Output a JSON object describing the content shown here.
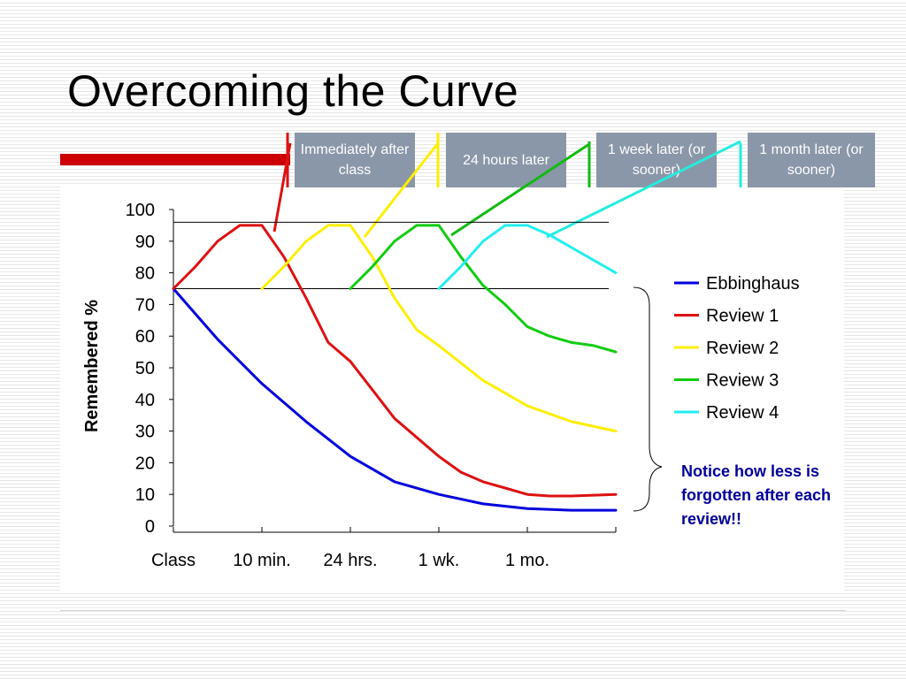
{
  "slide": {
    "title": "Overcoming the Curve",
    "accent_color": "#cc0000",
    "box_color": "#8a97a8"
  },
  "review_boxes": [
    {
      "label": "Immediately after class",
      "color": "#dd1111"
    },
    {
      "label": "24 hours later",
      "color": "#ffee00"
    },
    {
      "label": "1 week later (or sooner)",
      "color": "#11bb11"
    },
    {
      "label": "1 month later (or sooner)",
      "color": "#22eedd"
    }
  ],
  "notice": {
    "text": "Notice how less is forgotten after each review!!",
    "color": "#000099"
  },
  "chart_data": {
    "type": "line",
    "title": "",
    "xlabel": "",
    "ylabel": "Remembered %",
    "ylim": [
      0,
      100
    ],
    "yticks": [
      0,
      10,
      20,
      30,
      40,
      50,
      60,
      70,
      80,
      90,
      100
    ],
    "categories": [
      "Class",
      "10 min.",
      "24 hrs.",
      "1 wk.",
      "1 mo."
    ],
    "xlim": [
      0,
      5
    ],
    "reference_lines": [
      96,
      75
    ],
    "legend": {
      "position": "right"
    },
    "grid": false,
    "series": [
      {
        "name": "Ebbinghaus",
        "color": "#0000dd",
        "x": [
          0,
          0.5,
          1,
          1.5,
          2,
          2.5,
          3,
          3.5,
          4,
          4.5,
          5
        ],
        "y": [
          75,
          59,
          45,
          33,
          22,
          14,
          10,
          7,
          5.5,
          5,
          5
        ]
      },
      {
        "name": "Review 1",
        "color": "#dd1111",
        "x": [
          0,
          0.25,
          0.5,
          0.75,
          1,
          1.25,
          1.5,
          1.75,
          2,
          2.5,
          3,
          3.25,
          3.5,
          3.75,
          4,
          4.25,
          4.5,
          5
        ],
        "y": [
          75,
          82,
          90,
          95,
          95,
          85,
          72,
          58,
          52,
          34,
          22,
          17,
          14,
          12,
          10,
          9.5,
          9.5,
          10
        ]
      },
      {
        "name": "Review 2",
        "color": "#ffee00",
        "x": [
          1,
          1.25,
          1.5,
          1.75,
          2,
          2.25,
          2.5,
          2.75,
          3,
          3.5,
          4,
          4.5,
          5
        ],
        "y": [
          75,
          82,
          90,
          95,
          95,
          85,
          72,
          62,
          57,
          46,
          38,
          33,
          30
        ]
      },
      {
        "name": "Review 3",
        "color": "#11cc11",
        "x": [
          2,
          2.25,
          2.5,
          2.75,
          3,
          3.25,
          3.5,
          3.75,
          4,
          4.25,
          4.5,
          4.75,
          5
        ],
        "y": [
          75,
          82,
          90,
          95,
          95,
          85,
          76,
          70,
          63,
          60,
          58,
          57,
          55
        ]
      },
      {
        "name": "Review 4",
        "color": "#22eeee",
        "x": [
          3,
          3.25,
          3.5,
          3.75,
          4,
          4.25,
          4.5,
          4.75,
          5
        ],
        "y": [
          75,
          82,
          90,
          95,
          95,
          92,
          88,
          84,
          80
        ]
      }
    ]
  }
}
